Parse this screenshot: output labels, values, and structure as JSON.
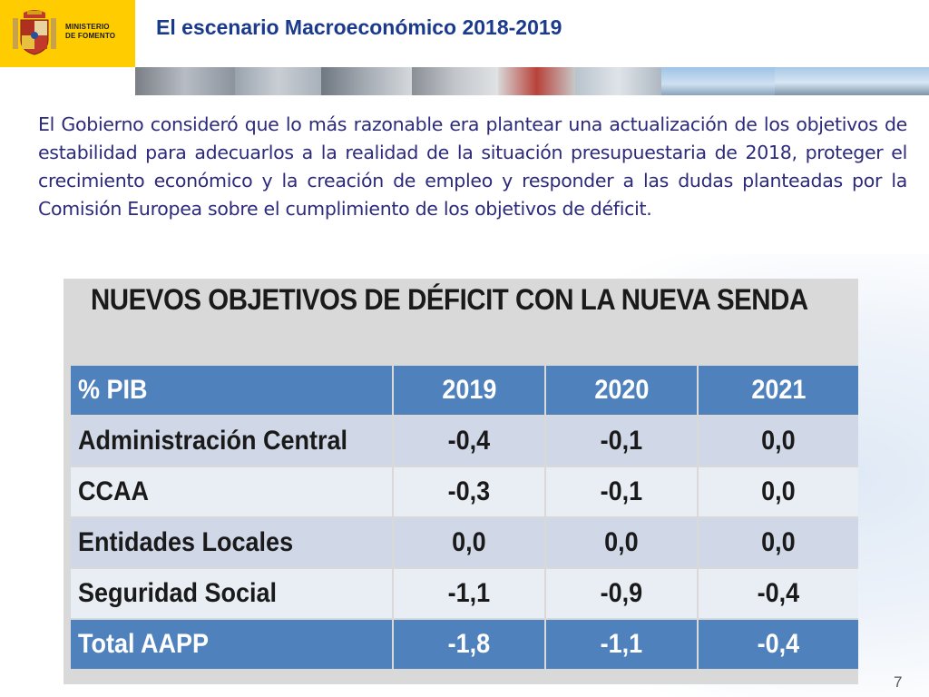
{
  "header": {
    "ministry_line1": "MINISTERIO",
    "ministry_line2": "DE FOMENTO",
    "title": "El escenario Macroeconómico 2018-2019"
  },
  "body": {
    "paragraph": "El Gobierno consideró que lo más razonable era plantear una actualización de los objetivos de estabilidad para adecuarlos a la realidad de la situación presupuestaria de 2018, proteger el crecimiento económico y la creación de empleo y responder a las dudas planteadas por la Comisión Europea sobre el cumplimiento de los objetivos de déficit."
  },
  "table": {
    "heading": "NUEVOS OBJETIVOS DE DÉFICIT CON LA NUEVA SENDA",
    "columns": [
      "% PIB",
      "2019",
      "2020",
      "2021"
    ],
    "rows": [
      {
        "label": "Administración Central",
        "values": [
          "-0,4",
          "-0,1",
          "0,0"
        ]
      },
      {
        "label": "CCAA",
        "values": [
          "-0,3",
          "-0,1",
          "0,0"
        ]
      },
      {
        "label": "Entidades Locales",
        "values": [
          "0,0",
          "0,0",
          "0,0"
        ]
      },
      {
        "label": "Seguridad Social",
        "values": [
          "-1,1",
          "-0,9",
          "-0,4"
        ]
      }
    ],
    "total": {
      "label": "Total AAPP",
      "values": [
        "-1,8",
        "-1,1",
        "-0,4"
      ]
    }
  },
  "footer": {
    "page_number": "7"
  },
  "colors": {
    "logo_bg": "#ffcc00",
    "title": "#1b3a8c",
    "body_text": "#2c2a7a",
    "table_header": "#4f81bd",
    "row_odd": "#d0d8e8",
    "row_even": "#e9edf4"
  }
}
